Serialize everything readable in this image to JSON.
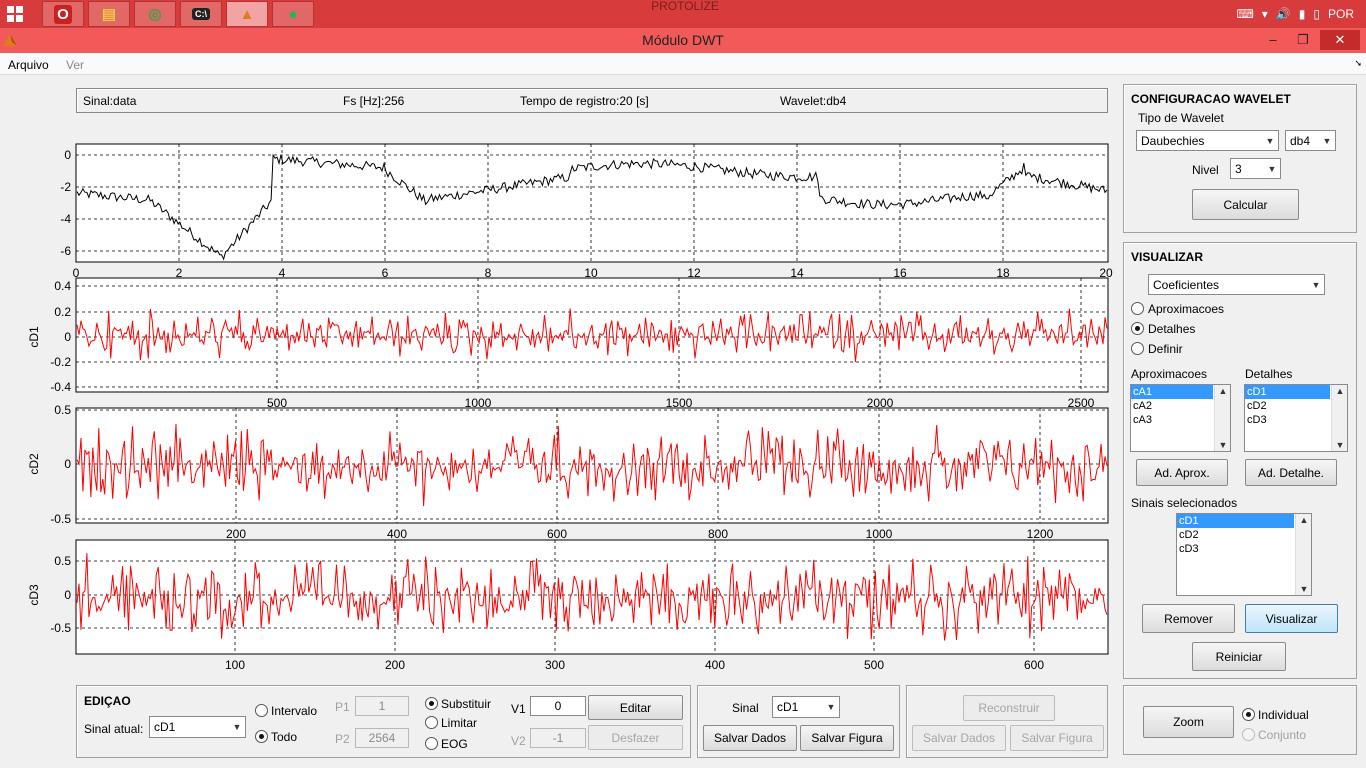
{
  "taskbar": {
    "title": "PROTOLIZE",
    "apps": [
      {
        "name": "opera-app",
        "glyph": "O",
        "color": "#ffffff",
        "bg": "#cc1f1f",
        "active": false
      },
      {
        "name": "file-explorer-app",
        "glyph": "▤",
        "color": "#f5c542",
        "bg": "",
        "active": false
      },
      {
        "name": "chrome-app",
        "glyph": "◎",
        "color": "#3fa04b",
        "bg": "",
        "active": false
      },
      {
        "name": "cmd-app",
        "glyph": "C:\\",
        "color": "#ffffff",
        "bg": "#222222",
        "active": false
      },
      {
        "name": "matlab-app",
        "glyph": "▲",
        "color": "#e07b22",
        "bg": "",
        "active": true
      },
      {
        "name": "spotify-app",
        "glyph": "●",
        "color": "#1db954",
        "bg": "",
        "active": false
      }
    ],
    "lang": "POR"
  },
  "window": {
    "title": "Módulo DWT",
    "minimize": "–",
    "maximize": "❐",
    "close": "✕"
  },
  "menu": {
    "file": "Arquivo",
    "view": "Ver"
  },
  "info": {
    "signal": "Sinal:data",
    "fs": "Fs [Hz]:256",
    "duration": "Tempo de registro:20 [s]",
    "wavelet": "Wavelet:db4"
  },
  "plots": [
    {
      "ylabel": "",
      "yticks": [
        "0",
        "-2",
        "-4",
        "-6"
      ],
      "xticks": [
        "0",
        "2",
        "4",
        "6",
        "8",
        "10",
        "12",
        "14",
        "16",
        "18",
        "20"
      ],
      "color": "#000000"
    },
    {
      "ylabel": "cD1",
      "yticks": [
        "0.4",
        "0.2",
        "0",
        "-0.2",
        "-0.4"
      ],
      "xticks": [
        "500",
        "1000",
        "1500",
        "2000",
        "2500"
      ],
      "color": "#ff0000"
    },
    {
      "ylabel": "cD2",
      "yticks": [
        "0.5",
        "0",
        "-0.5"
      ],
      "xticks": [
        "200",
        "400",
        "600",
        "800",
        "1000",
        "1200"
      ],
      "color": "#ff0000"
    },
    {
      "ylabel": "cD3",
      "yticks": [
        "0.5",
        "0",
        "-0.5"
      ],
      "xticks": [
        "100",
        "200",
        "300",
        "400",
        "500",
        "600"
      ],
      "color": "#ff0000"
    }
  ],
  "wavelet_config": {
    "title": "CONFIGURACAO WAVELET",
    "type_label": "Tipo de Wavelet",
    "family": "Daubechies",
    "order": "db4",
    "level_label": "Nivel",
    "level": "3",
    "calculate": "Calcular"
  },
  "visualize": {
    "title": "VISUALIZAR",
    "mode": "Coeficientes",
    "radios": [
      "Aproximacoes",
      "Detalhes",
      "Definir"
    ],
    "approx_label": "Aproximacoes",
    "details_label": "Detalhes",
    "approx_items": [
      "cA1",
      "cA2",
      "cA3"
    ],
    "detail_items": [
      "cD1",
      "cD2",
      "cD3"
    ],
    "add_approx": "Ad. Aprox.",
    "add_detail": "Ad. Detalhe.",
    "selected_label": "Sinais selecionados",
    "selected_items": [
      "cD1",
      "cD2",
      "cD3"
    ],
    "remove": "Remover",
    "visualize": "Visualizar",
    "reset": "Reiniciar"
  },
  "edit": {
    "title": "EDIÇAO",
    "current_label": "Sinal atual:",
    "current": "cD1",
    "interval": "Intervalo",
    "all": "Todo",
    "p1_label": "P1",
    "p1": "1",
    "p2_label": "P2",
    "p2": "2564",
    "replace": "Substituir",
    "limit": "Limitar",
    "eog": "EOG",
    "v1_label": "V1",
    "v1": "0",
    "v2_label": "V2",
    "v2": "-1",
    "edit_btn": "Editar",
    "undo_btn": "Desfazer"
  },
  "save": {
    "signal_label": "Sinal",
    "signal": "cD1",
    "save_data": "Salvar Dados",
    "save_figure": "Salvar Figura"
  },
  "reconstruct": {
    "reconstruct": "Reconstruir",
    "save_data": "Salvar Dados",
    "save_figure": "Salvar Figura"
  },
  "zoom": {
    "zoom": "Zoom",
    "individual": "Individual",
    "joint": "Conjunto"
  }
}
